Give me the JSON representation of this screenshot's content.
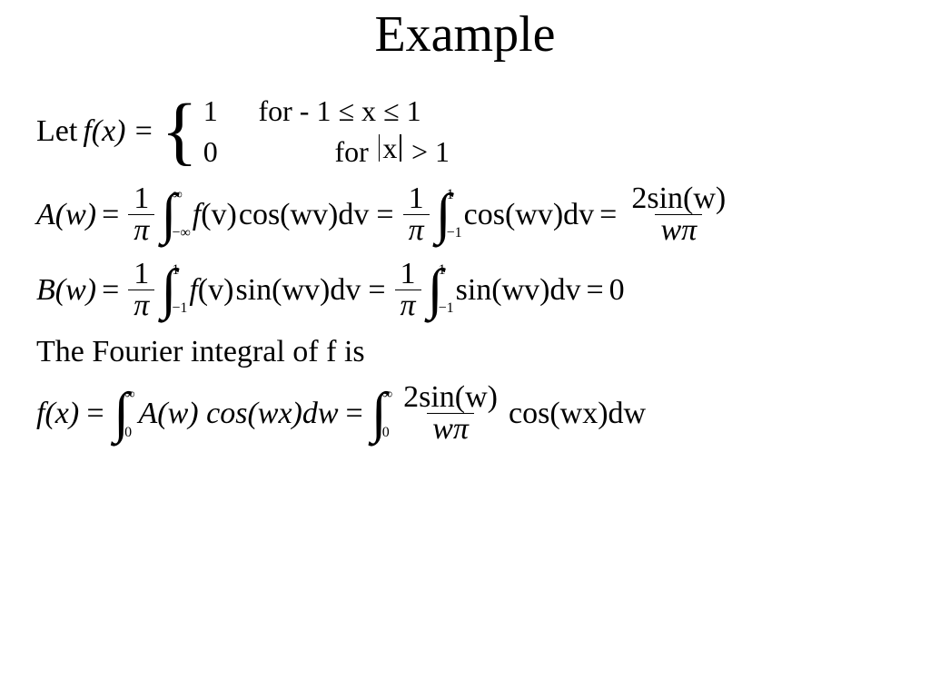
{
  "colors": {
    "background": "#ffffff",
    "text": "#000000"
  },
  "typography": {
    "family": "Times New Roman",
    "title_size_pt": 42,
    "body_size_pt": 26
  },
  "title": "Example",
  "line1": {
    "let": "Let",
    "fx": "f(x)",
    "eq": "=",
    "case1": {
      "value": "1",
      "for": "for",
      "cond_prefix": "- 1 ≤ x ≤ 1"
    },
    "case2": {
      "value": "0",
      "for": "for",
      "abs_inner": "x",
      "gt": "> 1"
    }
  },
  "Aw": {
    "lhs": "A(w)",
    "eq": "=",
    "coef": {
      "num": "1",
      "den": "π"
    },
    "int1": {
      "low": "−∞",
      "up": "∞"
    },
    "integrand1_a": "f",
    "integrand1_paren": "(v)",
    "integrand1_b": "cos(wv)dv",
    "coef2": {
      "num": "1",
      "den": "π"
    },
    "int2": {
      "low": "−1",
      "up": "1"
    },
    "integrand2": "cos(wv)dv",
    "result": {
      "num_a": "2sin(w)",
      "den": "wπ"
    }
  },
  "Bw": {
    "lhs": "B(w)",
    "eq": "=",
    "coef": {
      "num": "1",
      "den": "π"
    },
    "int1": {
      "low": "−1",
      "up": "1"
    },
    "integrand1_a": "f",
    "integrand1_paren": "(v)",
    "integrand1_b": "sin(wv)dv",
    "coef2": {
      "num": "1",
      "den": "π"
    },
    "int2": {
      "low": "−1",
      "up": "1"
    },
    "integrand2": "sin(wv)dv",
    "result": "0"
  },
  "sentence": "The Fourier integral of f is",
  "final": {
    "fx": "f(x)",
    "eq": "=",
    "int1": {
      "low": "0",
      "up": "∞"
    },
    "integrand1": "A(w) cos(wx)dw",
    "int2": {
      "low": "0",
      "up": "∞"
    },
    "mid": {
      "num": "2sin(w)",
      "den": "wπ"
    },
    "tail": "cos(wx)dw"
  }
}
